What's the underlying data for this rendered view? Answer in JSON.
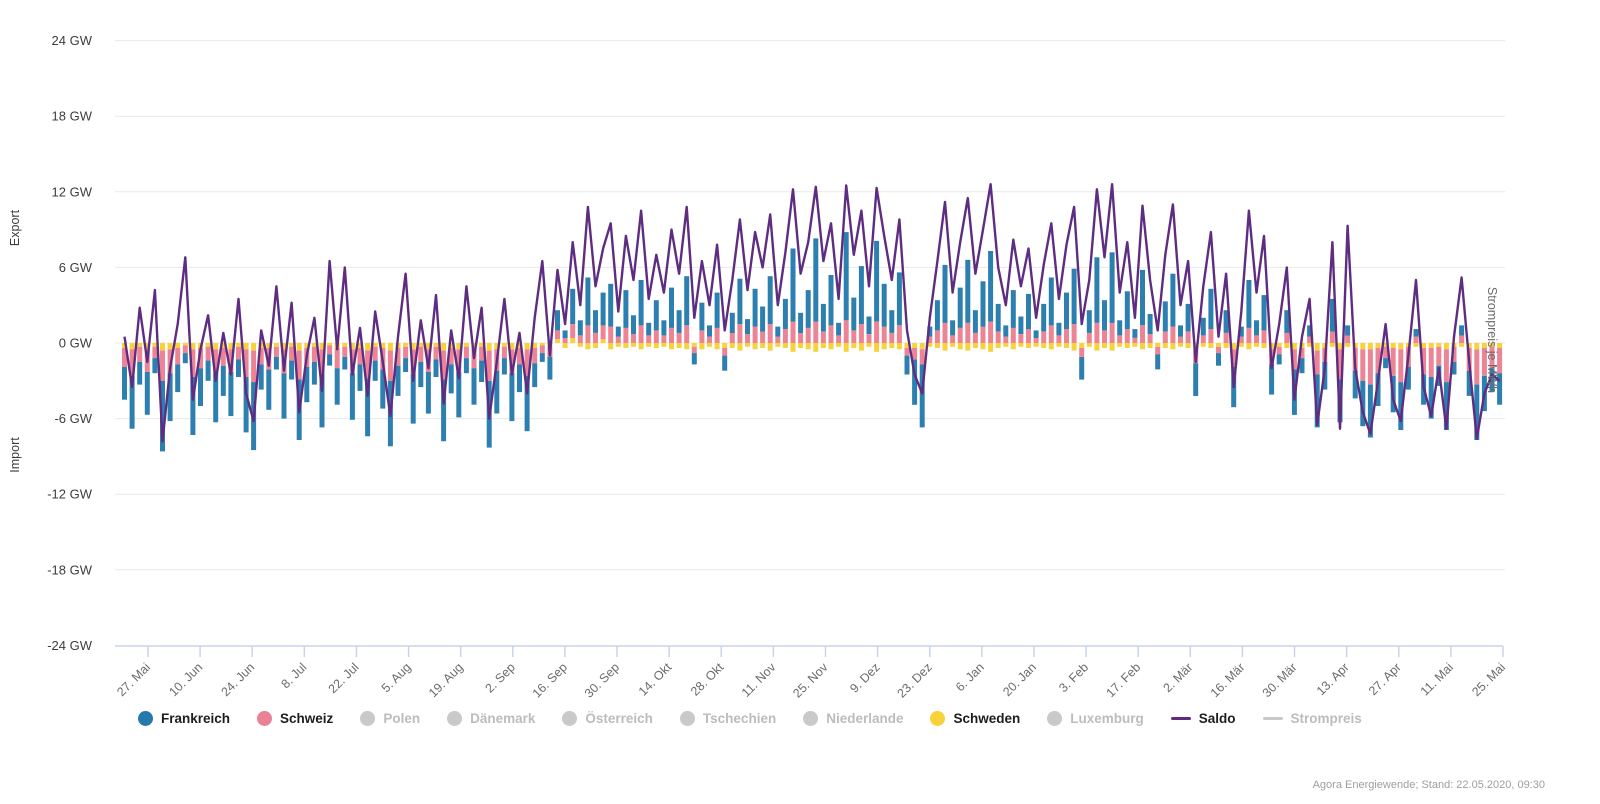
{
  "chart": {
    "left_label_top": "Export",
    "left_label_bottom": "Import",
    "right_axis_label": "Strompreis je MWh",
    "footer": "Agora Energiewende; Stand: 22.05.2020, 09:30",
    "legend": [
      {
        "label": "Frankreich",
        "marker": "dot",
        "color": "#2679AC",
        "active": true
      },
      {
        "label": "Schweiz",
        "marker": "dot",
        "color": "#EA8295",
        "active": true
      },
      {
        "label": "Polen",
        "marker": "dot",
        "color": "#C9C9C9",
        "active": false
      },
      {
        "label": "Dänemark",
        "marker": "dot",
        "color": "#C9C9C9",
        "active": false
      },
      {
        "label": "Österreich",
        "marker": "dot",
        "color": "#C9C9C9",
        "active": false
      },
      {
        "label": "Tschechien",
        "marker": "dot",
        "color": "#C9C9C9",
        "active": false
      },
      {
        "label": "Niederlande",
        "marker": "dot",
        "color": "#C9C9C9",
        "active": false
      },
      {
        "label": "Schweden",
        "marker": "dot",
        "color": "#F7D23A",
        "active": true
      },
      {
        "label": "Luxemburg",
        "marker": "dot",
        "color": "#C9C9C9",
        "active": false
      },
      {
        "label": "Saldo",
        "marker": "line",
        "color": "#5E2C80",
        "active": true
      },
      {
        "label": "Strompreis",
        "marker": "line",
        "color": "#C9C9C9",
        "active": false
      }
    ],
    "colors": {
      "grid": "#E9E9E9",
      "axis": "#C9D4EA",
      "tick_text": "#6b6b6b",
      "y_text": "#3d3d3d"
    }
  },
  "chart_data": {
    "type": "bar",
    "stacked": true,
    "unit": "GW",
    "ylim": [
      -24,
      24
    ],
    "y_tick_values": [
      24,
      18,
      12,
      6,
      0,
      -6,
      -12,
      -18,
      -24
    ],
    "y_tick_labels": [
      "24 GW",
      "18 GW",
      "12 GW",
      "6 GW",
      "0 GW",
      "-6 GW",
      "-12 GW",
      "-18 GW",
      "-24 GW"
    ],
    "x_tick_labels": [
      "27. Mai",
      "10. Jun",
      "24. Jun",
      "8. Jul",
      "22. Jul",
      "5. Aug",
      "19. Aug",
      "2. Sep",
      "16. Sep",
      "30. Sep",
      "14. Okt",
      "28. Okt",
      "11. Nov",
      "25. Nov",
      "9. Dez",
      "23. Dez",
      "6. Jan",
      "20. Jan",
      "3. Feb",
      "17. Feb",
      "2. Mär",
      "16. Mär",
      "30. Mär",
      "13. Apr",
      "27. Apr",
      "11. Mai",
      "25. Mai"
    ],
    "hidden_series": [
      "Polen",
      "Dänemark",
      "Österreich",
      "Tschechien",
      "Niederlande",
      "Luxemburg",
      "Strompreis"
    ],
    "series": [
      {
        "name": "Frankreich",
        "type": "bar",
        "color": "#2D7FB0",
        "values": [
          -2.6,
          -4.2,
          -1.8,
          -3.4,
          -1.2,
          -5.6,
          -3.8,
          -2.2,
          -0.8,
          -4.6,
          -3,
          -1.6,
          -3.9,
          -2.4,
          -3.5,
          -1.4,
          -4.4,
          -5.4,
          -2,
          -3.2,
          -1,
          -3.6,
          -1.5,
          -4.8,
          -2.8,
          -1.8,
          -4.2,
          -0.9,
          -2.9,
          -1,
          -3.7,
          -2.1,
          -4.6,
          -1.6,
          -3.1,
          -5.2,
          -2.4,
          -1.1,
          -3.9,
          -2,
          -3.3,
          -1.4,
          -4.9,
          -2.3,
          -3.6,
          -1.2,
          -2.9,
          -1.7,
          -5.3,
          -3.4,
          -1.3,
          -3.8,
          -2.2,
          -4.4,
          -1.9,
          -0.7,
          -1.8,
          1.6,
          0.6,
          2.8,
          1.2,
          3.8,
          1.8,
          2.6,
          3.4,
          0.8,
          3,
          1.5,
          3.6,
          1,
          2.4,
          1.2,
          3.2,
          1.8,
          3.9,
          -0.9,
          2.2,
          0.9,
          2.8,
          -1.2,
          1.6,
          3.6,
          1.2,
          3,
          2,
          3.8,
          0.8,
          2.4,
          5.8,
          1.6,
          3,
          6.6,
          2.2,
          4,
          1,
          7,
          2.6,
          4.6,
          1.4,
          6.4,
          3.4,
          1.8,
          4.2,
          -1.5,
          -3.6,
          -5,
          0.8,
          2.4,
          4.6,
          1.2,
          3.2,
          5,
          1.8,
          3.6,
          5.6,
          2.2,
          0.9,
          3,
          1.4,
          2.8,
          0.6,
          2.2,
          3.8,
          1,
          2.9,
          4.4,
          -1.8,
          1.8,
          5.2,
          2.4,
          5.6,
          1.2,
          3,
          0.7,
          4.4,
          1.6,
          -1.2,
          2.4,
          4.2,
          0.9,
          2.2,
          -2.6,
          1.4,
          3.2,
          -1,
          1.8,
          -3.2,
          0.8,
          3.8,
          1.2,
          2.8,
          -2.4,
          -0.8,
          1.8,
          -3.6,
          -1.2,
          0.9,
          -4.2,
          -2.2,
          2.6,
          -3.4,
          0.8,
          -2.2,
          -3.6,
          -4.2,
          -2.6,
          -0.8,
          -2.9,
          -3.8,
          -1.8,
          0.6,
          -2.4,
          -3.3,
          -1.6,
          -3.8,
          -1,
          0.8,
          -2,
          -4.4,
          -2.8,
          -1.9,
          -2.5
        ]
      },
      {
        "name": "Schweiz",
        "type": "bar",
        "color": "#EC8496",
        "values": [
          -1.5,
          -2.1,
          -1.2,
          -1.8,
          -0.9,
          -2.4,
          -1.9,
          -1.3,
          -0.6,
          -2.2,
          -1.6,
          -1.1,
          -1.9,
          -1.4,
          -1.8,
          -1,
          -2.2,
          -2.5,
          -1.3,
          -1.7,
          -0.8,
          -1.9,
          -1.1,
          -2.3,
          -1.5,
          -1.2,
          -2,
          -0.7,
          -1.6,
          -0.8,
          -1.9,
          -1.3,
          -2.2,
          -1.1,
          -1.7,
          -2.4,
          -1.4,
          -0.9,
          -2,
          -1.2,
          -1.8,
          -1,
          -2.3,
          -1.3,
          -1.8,
          -0.9,
          -1.6,
          -1.1,
          -2.4,
          -1.7,
          -0.9,
          -1.9,
          -1.3,
          -2.1,
          -1.2,
          -0.6,
          -0.8,
          0.7,
          0.4,
          1.1,
          0.6,
          1.4,
          0.8,
          1.1,
          1.3,
          0.5,
          1.2,
          0.7,
          1.4,
          0.6,
          1,
          0.6,
          1.2,
          0.8,
          1.4,
          -0.5,
          1,
          0.5,
          1.2,
          -0.6,
          0.8,
          1.5,
          0.7,
          1.3,
          0.9,
          1.5,
          0.5,
          1.1,
          1.7,
          0.8,
          1.2,
          1.7,
          0.9,
          1.4,
          0.6,
          1.8,
          1,
          1.5,
          0.7,
          1.7,
          1.3,
          0.8,
          1.4,
          -0.6,
          -0.9,
          -1.2,
          0.5,
          1,
          1.6,
          0.6,
          1.2,
          1.6,
          0.8,
          1.3,
          1.7,
          0.9,
          0.5,
          1.2,
          0.7,
          1.1,
          0.4,
          0.9,
          1.4,
          0.6,
          1.1,
          1.5,
          -0.7,
          0.8,
          1.6,
          1,
          1.6,
          0.6,
          1.1,
          0.4,
          1.4,
          0.7,
          -0.6,
          0.9,
          1.3,
          0.5,
          0.9,
          -1.1,
          0.6,
          1.1,
          -0.5,
          0.8,
          -1.4,
          0.5,
          1.2,
          0.6,
          1,
          -1.2,
          -0.6,
          0.8,
          -1.6,
          -0.8,
          0.5,
          -1.9,
          -1.1,
          0.9,
          -2.4,
          0.6,
          -1.8,
          -2.5,
          -2.8,
          -2,
          -0.9,
          -2.2,
          -2.6,
          -1.6,
          0.5,
          -2.1,
          -2.3,
          -1.5,
          -2.6,
          -1.2,
          0.6,
          -1.8,
          -2.8,
          -2.2,
          -1.7,
          -2
        ]
      },
      {
        "name": "Schweden",
        "type": "bar",
        "color": "#F7D23A",
        "values": [
          -0.4,
          -0.5,
          -0.3,
          -0.5,
          -0.3,
          -0.6,
          -0.5,
          -0.4,
          -0.2,
          -0.5,
          -0.4,
          -0.3,
          -0.5,
          -0.4,
          -0.5,
          -0.3,
          -0.5,
          -0.6,
          -0.4,
          -0.4,
          -0.3,
          -0.5,
          -0.3,
          -0.6,
          -0.4,
          -0.3,
          -0.5,
          -0.2,
          -0.4,
          -0.3,
          -0.5,
          -0.4,
          -0.6,
          -0.3,
          -0.4,
          -0.6,
          -0.4,
          -0.3,
          -0.5,
          -0.3,
          -0.5,
          -0.3,
          -0.6,
          -0.4,
          -0.5,
          -0.3,
          -0.4,
          -0.3,
          -0.6,
          -0.5,
          -0.3,
          -0.5,
          -0.4,
          -0.5,
          -0.4,
          -0.2,
          -0.3,
          0.3,
          -0.4,
          0.4,
          -0.3,
          -0.5,
          -0.4,
          0.3,
          -0.5,
          -0.3,
          -0.4,
          -0.3,
          -0.5,
          -0.3,
          -0.4,
          -0.3,
          -0.5,
          -0.4,
          -0.5,
          -0.3,
          -0.5,
          -0.3,
          -0.5,
          -0.4,
          -0.4,
          -0.6,
          -0.3,
          -0.5,
          -0.4,
          -0.6,
          -0.3,
          -0.4,
          -0.7,
          -0.4,
          -0.5,
          -0.7,
          -0.4,
          -0.5,
          -0.3,
          -0.7,
          -0.4,
          -0.6,
          -0.3,
          -0.7,
          -0.5,
          -0.4,
          -0.5,
          -0.4,
          -0.4,
          -0.5,
          -0.3,
          -0.4,
          -0.6,
          -0.3,
          -0.5,
          -0.6,
          -0.4,
          -0.5,
          -0.7,
          -0.4,
          -0.3,
          -0.5,
          -0.3,
          -0.4,
          -0.3,
          -0.4,
          -0.5,
          -0.3,
          -0.4,
          -0.6,
          -0.4,
          -0.3,
          -0.6,
          -0.4,
          -0.6,
          -0.3,
          -0.4,
          -0.3,
          -0.5,
          -0.4,
          -0.3,
          -0.4,
          -0.5,
          -0.3,
          -0.4,
          -0.5,
          -0.3,
          -0.4,
          -0.3,
          -0.4,
          -0.5,
          -0.3,
          -0.5,
          -0.3,
          -0.4,
          -0.5,
          -0.3,
          -0.4,
          -0.5,
          -0.4,
          -0.3,
          -0.6,
          -0.4,
          -0.3,
          -0.5,
          -0.3,
          -0.4,
          -0.5,
          -0.5,
          -0.4,
          -0.3,
          -0.4,
          -0.5,
          -0.3,
          -0.3,
          -0.4,
          -0.4,
          -0.3,
          -0.5,
          -0.3,
          -0.3,
          -0.4,
          -0.5,
          -0.4,
          -0.3,
          -0.4
        ]
      },
      {
        "name": "Saldo",
        "type": "line",
        "color": "#5E2C80",
        "values": [
          0.5,
          -3.5,
          2.8,
          -1.5,
          4.2,
          -7.8,
          -2,
          1.5,
          6.8,
          -4.5,
          -0.5,
          2.2,
          -3,
          0.8,
          -2.5,
          3.5,
          -4,
          -6.2,
          1,
          -1.8,
          4.5,
          -2.2,
          3.2,
          -5.5,
          -1,
          2,
          -3.8,
          6.5,
          -0.5,
          6,
          -2.5,
          1.2,
          -4.2,
          2.5,
          -1.5,
          -5.8,
          0.5,
          5.5,
          -3,
          1.8,
          -2,
          3.8,
          -4.8,
          1,
          -2.8,
          4.5,
          -1.2,
          2.8,
          -6,
          -1.5,
          3.5,
          -2.5,
          0.8,
          -4,
          2,
          6.5,
          -1,
          5.8,
          1.5,
          8,
          3,
          10.8,
          4.5,
          7.5,
          9.5,
          2.5,
          8.5,
          5,
          10.5,
          3.5,
          7,
          4,
          9,
          5.5,
          10.8,
          2,
          6.5,
          3,
          7.8,
          1,
          5,
          9.8,
          4.2,
          8.8,
          6,
          10.2,
          3,
          7.2,
          12.2,
          5.5,
          8,
          12.4,
          6.5,
          9.5,
          3.5,
          12.5,
          7,
          10.5,
          4.5,
          12.3,
          8.5,
          5,
          9.8,
          1,
          -2.5,
          -4,
          2,
          6.5,
          11.2,
          4,
          8,
          11.5,
          5.5,
          9,
          12.6,
          6,
          3,
          8.2,
          4.5,
          7.5,
          2,
          6.2,
          9.5,
          3.5,
          7.8,
          10.8,
          1.5,
          5,
          12.2,
          6.8,
          12.6,
          4,
          8,
          2,
          10.9,
          5,
          1,
          7,
          11,
          3,
          6.5,
          -1.5,
          4.5,
          8.8,
          0.5,
          5.5,
          -3.5,
          2.5,
          10.5,
          4,
          8.5,
          -2,
          1.5,
          6,
          -4.5,
          0.5,
          3.5,
          -6.5,
          -2,
          8,
          -6.8,
          9.3,
          -2,
          -5.5,
          -7.2,
          -3,
          1.5,
          -4.5,
          -6.2,
          -1,
          5,
          -3.5,
          -5.8,
          -2,
          -6.8,
          0.5,
          5.2,
          -1.5,
          -7.6,
          -4,
          -2.5,
          -3
        ]
      }
    ]
  }
}
